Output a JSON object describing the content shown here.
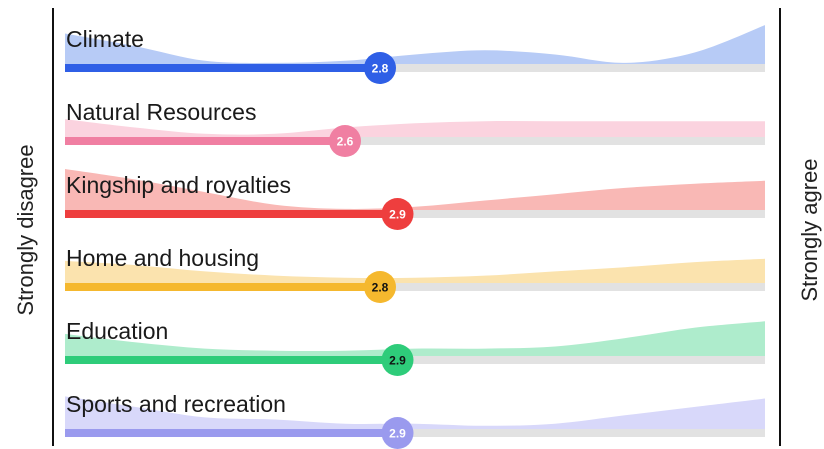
{
  "chart_data": {
    "type": "area",
    "left_label": "Strongly disagree",
    "right_label": "Strongly agree",
    "scale": [
      1,
      5
    ],
    "rows": [
      {
        "name": "Climate",
        "mean": 2.8,
        "color": "#2f5fe6",
        "fill": "#b7cbf6",
        "badge_text_color": "#ffffff",
        "distribution": [
          0.75,
          0.45,
          0.1,
          0.05,
          0.1,
          0.25,
          0.35,
          0.25,
          0.05,
          0.3,
          0.95
        ]
      },
      {
        "name": "Natural Resources",
        "mean": 2.6,
        "color": "#f07fa2",
        "fill": "#fbd3df",
        "badge_text_color": "#ffffff",
        "distribution": [
          0.45,
          0.25,
          0.1,
          0.1,
          0.25,
          0.35,
          0.4,
          0.4,
          0.4,
          0.4,
          0.4
        ]
      },
      {
        "name": "Kingship and royalties",
        "mean": 2.9,
        "color": "#ee3e3e",
        "fill": "#f9b8b5",
        "badge_text_color": "#ffffff",
        "distribution": [
          1.0,
          0.75,
          0.45,
          0.15,
          0.05,
          0.1,
          0.25,
          0.4,
          0.55,
          0.65,
          0.72
        ]
      },
      {
        "name": "Home and housing",
        "mean": 2.8,
        "color": "#f5b82e",
        "fill": "#fbe3ae",
        "badge_text_color": "#111111",
        "distribution": [
          0.55,
          0.45,
          0.3,
          0.2,
          0.15,
          0.15,
          0.2,
          0.3,
          0.4,
          0.52,
          0.6
        ]
      },
      {
        "name": "Education",
        "mean": 2.9,
        "color": "#2ecc7a",
        "fill": "#aeeccc",
        "badge_text_color": "#111111",
        "distribution": [
          0.55,
          0.35,
          0.2,
          0.15,
          0.15,
          0.2,
          0.2,
          0.25,
          0.45,
          0.7,
          0.85
        ]
      },
      {
        "name": "Sports and recreation",
        "mean": 2.9,
        "color": "#9a9aee",
        "fill": "#d8d8fa",
        "badge_text_color": "#ffffff",
        "distribution": [
          0.8,
          0.55,
          0.3,
          0.25,
          0.15,
          0.15,
          0.1,
          0.15,
          0.35,
          0.55,
          0.75
        ]
      }
    ]
  }
}
